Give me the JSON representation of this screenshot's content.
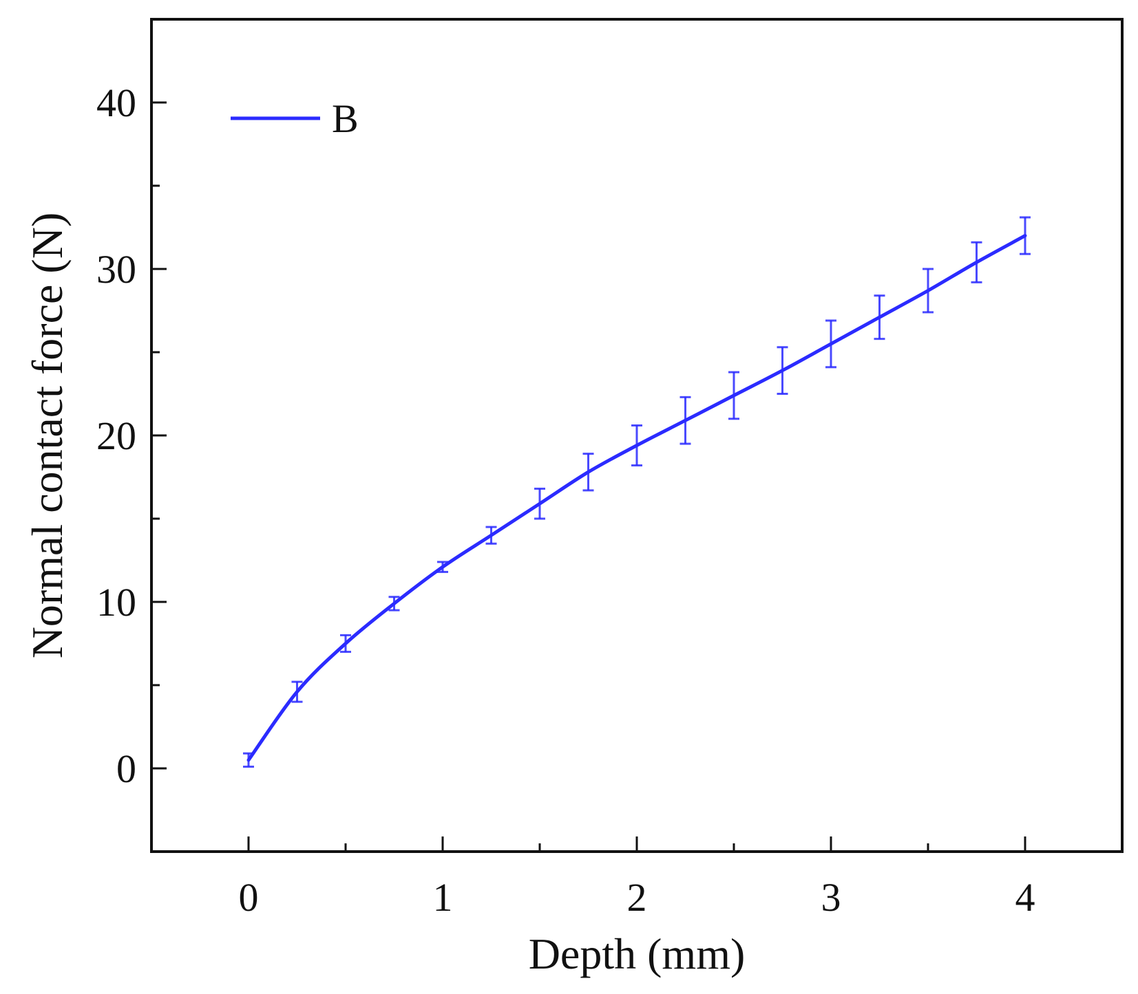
{
  "chart_data": {
    "type": "line",
    "xlabel": "Depth (mm)",
    "ylabel": "Normal contact force (N)",
    "xlim": [
      -0.5,
      4.5
    ],
    "ylim": [
      -5,
      45
    ],
    "x_ticks": [
      0,
      1,
      2,
      3,
      4
    ],
    "y_ticks": [
      0,
      10,
      20,
      30,
      40
    ],
    "grid": false,
    "legend": "top-left",
    "series": [
      {
        "name": "B",
        "color": "#2b2bff",
        "x": [
          0,
          0.25,
          0.5,
          0.75,
          1.0,
          1.25,
          1.5,
          1.75,
          2.0,
          2.25,
          2.5,
          2.75,
          3.0,
          3.25,
          3.5,
          3.75,
          4.0
        ],
        "y": [
          0.5,
          4.6,
          7.5,
          9.9,
          12.1,
          14.0,
          15.9,
          17.8,
          19.4,
          20.9,
          22.4,
          23.9,
          25.5,
          27.1,
          28.7,
          30.4,
          32.0
        ],
        "error": [
          0.4,
          0.6,
          0.5,
          0.4,
          0.3,
          0.5,
          0.9,
          1.1,
          1.2,
          1.4,
          1.4,
          1.4,
          1.4,
          1.3,
          1.3,
          1.2,
          1.1
        ]
      }
    ]
  }
}
